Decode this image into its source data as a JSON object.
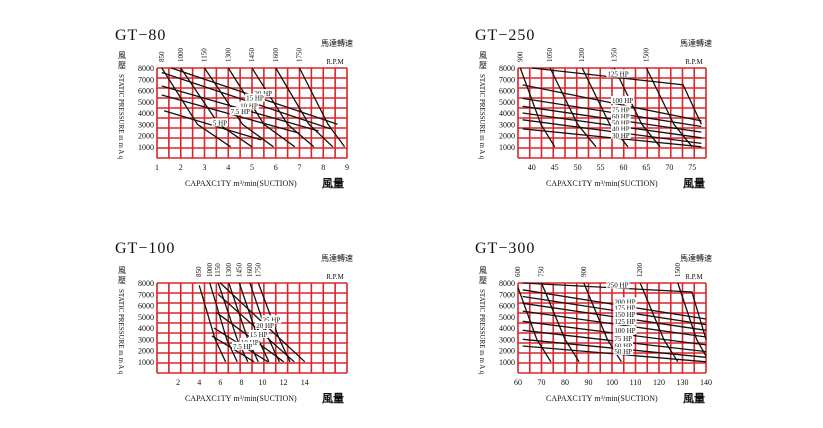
{
  "colors": {
    "grid": "#d9262c",
    "curve": "#111111",
    "text": "#111111"
  },
  "chart_data": [
    {
      "type": "line",
      "title": "GT−80",
      "xlabel": "CAPAXC1TY",
      "xunit": "m³/min(SUCTION)",
      "xlabel_cjk": "風量",
      "ylabel": "STATIC PRESSURE m m A q",
      "ylabel_cjk": "風壓",
      "rpm_title": "馬達轉速",
      "rpm_unit": "R.P.M",
      "xlim": [
        1,
        9
      ],
      "ylim": [
        0,
        8000
      ],
      "x_ticks": [
        1,
        2,
        3,
        4,
        5,
        6,
        7,
        8,
        9
      ],
      "y_ticks": [
        1000,
        2000,
        3000,
        4000,
        5000,
        6000,
        7000,
        8000
      ],
      "rpm_lines": [
        {
          "label": "850",
          "points": [
            [
              1.2,
              8000
            ],
            [
              2.7,
              3000
            ],
            [
              4.1,
              1000
            ]
          ]
        },
        {
          "label": "1000",
          "points": [
            [
              2.0,
              8000
            ],
            [
              3.6,
              3000
            ],
            [
              5.0,
              1000
            ]
          ]
        },
        {
          "label": "1150",
          "points": [
            [
              3.0,
              8000
            ],
            [
              4.6,
              3000
            ],
            [
              5.9,
              1000
            ]
          ]
        },
        {
          "label": "1300",
          "points": [
            [
              4.0,
              8000
            ],
            [
              5.5,
              3000
            ],
            [
              6.8,
              1000
            ]
          ]
        },
        {
          "label": "1450",
          "points": [
            [
              5.0,
              8000
            ],
            [
              6.5,
              3000
            ],
            [
              7.6,
              1000
            ]
          ]
        },
        {
          "label": "1600",
          "points": [
            [
              6.0,
              8000
            ],
            [
              7.4,
              3000
            ],
            [
              8.4,
              1000
            ]
          ]
        },
        {
          "label": "1750",
          "points": [
            [
              7.0,
              8000
            ],
            [
              8.2,
              3000
            ],
            [
              8.9,
              1000
            ]
          ]
        }
      ],
      "hp_lines": [
        {
          "label": "20 HP",
          "points": [
            [
              1.6,
              8000
            ],
            [
              8.6,
              3000
            ]
          ]
        },
        {
          "label": "15 HP",
          "points": [
            [
              1.2,
              7600
            ],
            [
              8.3,
              2600
            ]
          ]
        },
        {
          "label": "10 HP",
          "points": [
            [
              1.2,
              6400
            ],
            [
              7.8,
              2400
            ]
          ]
        },
        {
          "label": "7.5 HP",
          "points": [
            [
              1.2,
              5600
            ],
            [
              7.0,
              2200
            ]
          ]
        },
        {
          "label": "5 HP",
          "points": [
            [
              1.3,
              4200
            ],
            [
              5.4,
              1600
            ]
          ]
        }
      ]
    },
    {
      "type": "line",
      "title": "GT−250",
      "xlabel": "CAPAXC1TY",
      "xunit": "m³/min(SUCTION)",
      "xlabel_cjk": "風量",
      "ylabel": "STATIC PRESSURE m m A q",
      "ylabel_cjk": "風壓",
      "rpm_title": "馬達轉速",
      "rpm_unit": "R.P.M",
      "xlim": [
        37,
        78
      ],
      "ylim": [
        0,
        8000
      ],
      "x_ticks": [
        40,
        45,
        50,
        55,
        60,
        65,
        70,
        75
      ],
      "y_ticks": [
        1000,
        2000,
        3000,
        4000,
        5000,
        6000,
        7000,
        8000
      ],
      "rpm_lines": [
        {
          "label": "900",
          "points": [
            [
              37.5,
              8000
            ],
            [
              42,
              3000
            ],
            [
              45,
              1000
            ]
          ]
        },
        {
          "label": "1050",
          "points": [
            [
              44,
              8000
            ],
            [
              50,
              3000
            ],
            [
              54,
              1000
            ]
          ]
        },
        {
          "label": "1200",
          "points": [
            [
              51,
              8000
            ],
            [
              57,
              3000
            ],
            [
              61,
              1000
            ]
          ]
        },
        {
          "label": "1350",
          "points": [
            [
              58,
              8000
            ],
            [
              64,
              3000
            ],
            [
              68,
              1000
            ]
          ]
        },
        {
          "label": "1500",
          "points": [
            [
              65,
              8000
            ],
            [
              71,
              3000
            ],
            [
              75,
              1000
            ]
          ]
        }
      ],
      "hp_lines": [
        {
          "label": "125 HP",
          "points": [
            [
              40,
              8000
            ],
            [
              73,
              6500
            ],
            [
              77,
              3000
            ]
          ]
        },
        {
          "label": "100 HP",
          "points": [
            [
              38,
              6500
            ],
            [
              77,
              3300
            ]
          ]
        },
        {
          "label": "75 HP",
          "points": [
            [
              38,
              5300
            ],
            [
              77,
              2800
            ]
          ]
        },
        {
          "label": "60 HP",
          "points": [
            [
              38,
              4600
            ],
            [
              77,
              2300
            ]
          ]
        },
        {
          "label": "50 HP",
          "points": [
            [
              38,
              4000
            ],
            [
              77,
              1800
            ]
          ]
        },
        {
          "label": "40 HP",
          "points": [
            [
              38,
              3400
            ],
            [
              77,
              1300
            ]
          ]
        },
        {
          "label": "30 HP",
          "points": [
            [
              38,
              2600
            ],
            [
              77,
              1000
            ]
          ]
        }
      ]
    },
    {
      "type": "line",
      "title": "GT−100",
      "xlabel": "CAPAXC1TY",
      "xunit": "m³/min(SUCTION)",
      "xlabel_cjk": "風量",
      "ylabel": "STATIC PRESSURE m m A q",
      "ylabel_cjk": "風壓",
      "rpm_title": "馬達轉速",
      "rpm_unit": "R.P.M",
      "xlim": [
        0,
        18
      ],
      "ylim": [
        0,
        8000
      ],
      "x_ticks": [
        2,
        4,
        6,
        8,
        10,
        12,
        14
      ],
      "y_ticks": [
        1000,
        2000,
        3000,
        4000,
        5000,
        6000,
        7000,
        8000
      ],
      "rpm_lines": [
        {
          "label": "850",
          "points": [
            [
              4.0,
              7800
            ],
            [
              5.5,
              3000
            ],
            [
              6.5,
              1000
            ]
          ]
        },
        {
          "label": "1000",
          "points": [
            [
              5.0,
              8000
            ],
            [
              6.6,
              3000
            ],
            [
              7.6,
              1000
            ]
          ]
        },
        {
          "label": "1150",
          "points": [
            [
              5.8,
              8000
            ],
            [
              7.6,
              3000
            ],
            [
              8.6,
              1000
            ]
          ]
        },
        {
          "label": "1300",
          "points": [
            [
              6.8,
              8000
            ],
            [
              8.6,
              3000
            ],
            [
              9.6,
              1000
            ]
          ]
        },
        {
          "label": "1450",
          "points": [
            [
              7.8,
              8000
            ],
            [
              9.6,
              3000
            ],
            [
              10.6,
              1000
            ]
          ]
        },
        {
          "label": "1600",
          "points": [
            [
              8.8,
              8000
            ],
            [
              10.6,
              3000
            ],
            [
              11.6,
              1000
            ]
          ]
        },
        {
          "label": "1750",
          "points": [
            [
              9.6,
              8000
            ],
            [
              11.6,
              3000
            ],
            [
              12.6,
              1000
            ]
          ]
        }
      ],
      "hp_lines": [
        {
          "label": "25 HP",
          "points": [
            [
              6.0,
              8000
            ],
            [
              14.0,
              1000
            ]
          ]
        },
        {
          "label": "20 HP",
          "points": [
            [
              5.8,
              7000
            ],
            [
              13.0,
              1000
            ]
          ]
        },
        {
          "label": "15 HP",
          "points": [
            [
              5.6,
              5400
            ],
            [
              12.0,
              1000
            ]
          ]
        },
        {
          "label": "10 HP",
          "points": [
            [
              5.4,
              4000
            ],
            [
              10.5,
              1000
            ]
          ]
        },
        {
          "label": "7.5 HP",
          "points": [
            [
              5.2,
              3300
            ],
            [
              9.2,
              1000
            ]
          ]
        }
      ]
    },
    {
      "type": "line",
      "title": "GT−300",
      "xlabel": "CAPAXC1TY",
      "xunit": "m³/min(SUCTION)",
      "xlabel_cjk": "風量",
      "ylabel": "STATIC PRESSURE m m A q",
      "ylabel_cjk": "風壓",
      "rpm_title": "馬達轉速",
      "rpm_unit": "R.P.M",
      "xlim": [
        60,
        140
      ],
      "ylim": [
        0,
        8000
      ],
      "x_ticks": [
        60,
        70,
        80,
        90,
        100,
        110,
        120,
        130,
        140
      ],
      "y_ticks": [
        1000,
        2000,
        3000,
        4000,
        5000,
        6000,
        7000,
        8000
      ],
      "rpm_lines": [
        {
          "label": "600",
          "points": [
            [
              60,
              7600
            ],
            [
              68,
              3000
            ],
            [
              74,
              1000
            ]
          ]
        },
        {
          "label": "750",
          "points": [
            [
              70,
              8000
            ],
            [
              80,
              3000
            ],
            [
              86,
              1000
            ]
          ]
        },
        {
          "label": "900",
          "points": [
            [
              88,
              8000
            ],
            [
              98,
              3000
            ],
            [
              104,
              1000
            ]
          ]
        },
        {
          "label": "1200",
          "points": [
            [
              112,
              8000
            ],
            [
              122,
              3000
            ],
            [
              128,
              1000
            ]
          ]
        },
        {
          "label": "1500",
          "points": [
            [
              128,
              8000
            ],
            [
              136,
              3000
            ],
            [
              140,
              1500
            ]
          ]
        }
      ],
      "hp_lines": [
        {
          "label": "250 HP",
          "points": [
            [
              62,
              8000
            ],
            [
              134,
              7200
            ],
            [
              140,
              3000
            ]
          ]
        },
        {
          "label": "200 HP",
          "points": [
            [
              62,
              7400
            ],
            [
              140,
              4800
            ]
          ]
        },
        {
          "label": "175 HP",
          "points": [
            [
              62,
              6800
            ],
            [
              140,
              4300
            ]
          ]
        },
        {
          "label": "150 HP",
          "points": [
            [
              62,
              6200
            ],
            [
              140,
              3800
            ]
          ]
        },
        {
          "label": "125 HP",
          "points": [
            [
              62,
              5500
            ],
            [
              140,
              3200
            ]
          ]
        },
        {
          "label": "100 HP",
          "points": [
            [
              62,
              4600
            ],
            [
              140,
              2500
            ]
          ]
        },
        {
          "label": "75 HP",
          "points": [
            [
              62,
              3800
            ],
            [
              140,
              1900
            ]
          ]
        },
        {
          "label": "60 HP",
          "points": [
            [
              62,
              3000
            ],
            [
              140,
              1400
            ]
          ]
        },
        {
          "label": "50 HP",
          "points": [
            [
              62,
              2400
            ],
            [
              140,
              1000
            ]
          ]
        }
      ]
    }
  ]
}
